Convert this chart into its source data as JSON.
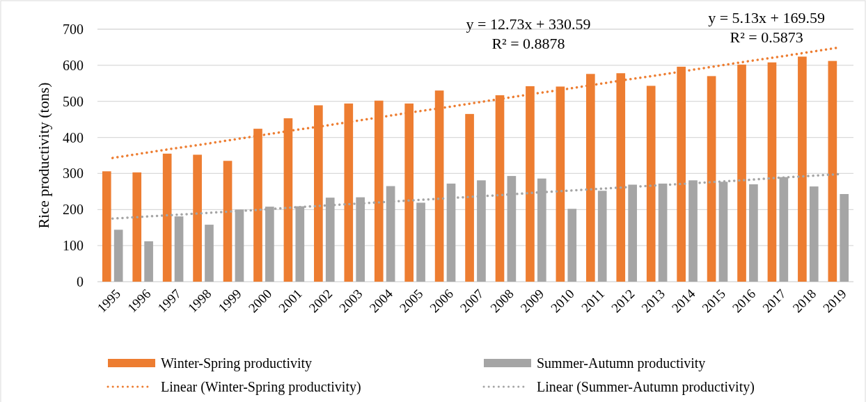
{
  "chart_data": {
    "type": "bar",
    "ylabel": "Rice productivity (tons)",
    "categories": [
      "1995",
      "1996",
      "1997",
      "1998",
      "1999",
      "2000",
      "2001",
      "2002",
      "2003",
      "2004",
      "2005",
      "2006",
      "2007",
      "2008",
      "2009",
      "2010",
      "2011",
      "2012",
      "2013",
      "2014",
      "2015",
      "2016",
      "2017",
      "2018",
      "2019"
    ],
    "series": [
      {
        "name": "Winter-Spring productivity",
        "color": "#ed7d31",
        "values": [
          306,
          303,
          355,
          352,
          335,
          424,
          453,
          489,
          494,
          502,
          494,
          530,
          465,
          517,
          542,
          541,
          576,
          578,
          543,
          596,
          570,
          602,
          608,
          624,
          612
        ]
      },
      {
        "name": "Summer-Autumn productivity",
        "color": "#a5a5a5",
        "values": [
          144,
          112,
          181,
          158,
          200,
          208,
          209,
          233,
          234,
          265,
          219,
          272,
          281,
          293,
          286,
          202,
          252,
          269,
          272,
          281,
          277,
          270,
          290,
          264,
          243
        ]
      },
      {
        "name": "Linear (Winter-Spring productivity)",
        "type": "line",
        "line_style": "dotted",
        "color": "#ed7d31",
        "values": [
          343,
          356,
          369,
          381,
          394,
          407,
          420,
          432,
          445,
          458,
          471,
          483,
          496,
          509,
          522,
          534,
          547,
          560,
          572,
          585,
          598,
          611,
          623,
          636,
          649
        ]
      },
      {
        "name": "Linear (Summer-Autumn productivity)",
        "type": "line",
        "line_style": "dotted",
        "color": "#a5a5a5",
        "values": [
          175,
          180,
          185,
          190,
          195,
          200,
          206,
          211,
          216,
          221,
          226,
          231,
          236,
          241,
          247,
          252,
          257,
          262,
          267,
          272,
          277,
          282,
          288,
          293,
          298
        ]
      }
    ],
    "annotations": [
      "y = 12.73x + 330.59\nR² = 0.8878",
      "y = 5.13x + 169.59\nR² = 0.5873"
    ],
    "ylim": [
      0,
      700
    ],
    "yticks": [
      0,
      100,
      200,
      300,
      400,
      500,
      600,
      700
    ],
    "grid": "y",
    "legend": "bottom"
  }
}
